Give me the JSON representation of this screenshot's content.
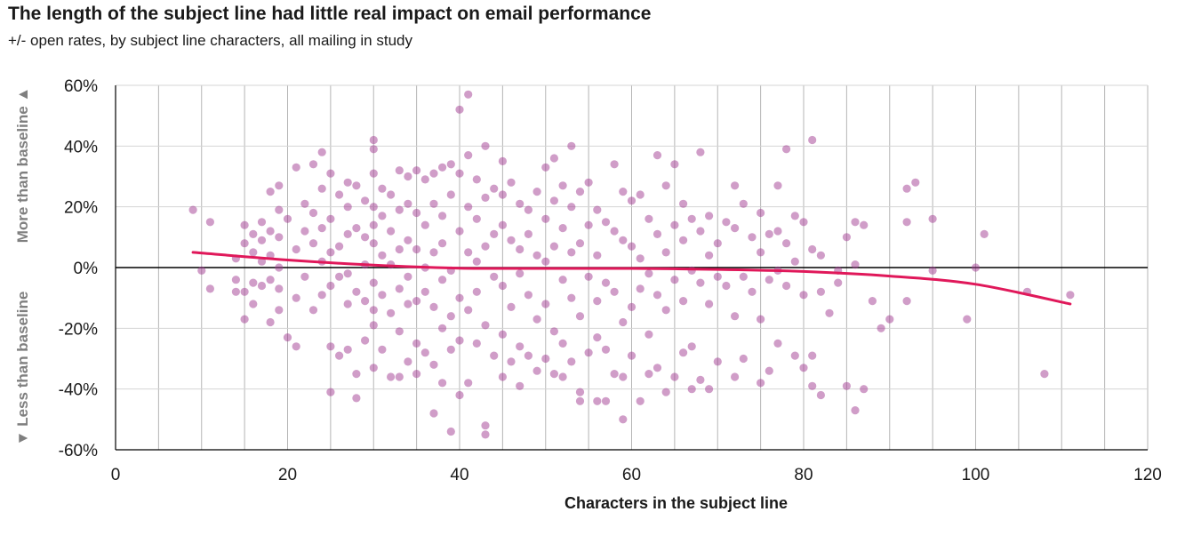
{
  "chart_data": {
    "type": "scatter",
    "title": "The length of the subject line had little real impact on email performance",
    "subtitle": "+/- open rates, by subject line characters, all mailing in study",
    "xlabel": "Characters in the subject line",
    "ylabel_upper": "More than baseline ▲",
    "ylabel_lower": "▼ Less than baseline",
    "xlim": [
      0,
      120
    ],
    "ylim": [
      -60,
      60
    ],
    "x_ticks": [
      0,
      20,
      40,
      60,
      80,
      100,
      120
    ],
    "x_tick_labels": [
      "0",
      "20",
      "40",
      "60",
      "80",
      "100",
      "120"
    ],
    "y_ticks": [
      60,
      40,
      20,
      0,
      -20,
      -40,
      -60
    ],
    "y_tick_labels": [
      "60%",
      "40%",
      "20%",
      "0%",
      "-20%",
      "-40%",
      "-60%"
    ],
    "x_gridline_step": 5,
    "y_gridline_step": 20,
    "grid": true,
    "legend": "none",
    "colors": {
      "points": "#a23c92",
      "trend": "#e0185a",
      "zero_line": "#000000",
      "grid": "#bdbdbd"
    },
    "scatter_series": {
      "name": "",
      "points": [
        [
          9,
          19
        ],
        [
          10,
          -1
        ],
        [
          11,
          15
        ],
        [
          11,
          -7
        ],
        [
          14,
          3
        ],
        [
          14,
          -4
        ],
        [
          14,
          -8
        ],
        [
          15,
          14
        ],
        [
          15,
          8
        ],
        [
          15,
          -17
        ],
        [
          15,
          -8
        ],
        [
          16,
          11
        ],
        [
          16,
          5
        ],
        [
          16,
          -5
        ],
        [
          16,
          -12
        ],
        [
          17,
          15
        ],
        [
          17,
          9
        ],
        [
          17,
          2
        ],
        [
          17,
          -6
        ],
        [
          18,
          25
        ],
        [
          18,
          12
        ],
        [
          18,
          4
        ],
        [
          18,
          -4
        ],
        [
          18,
          -18
        ],
        [
          19,
          27
        ],
        [
          19,
          19
        ],
        [
          19,
          10
        ],
        [
          19,
          0
        ],
        [
          19,
          -7
        ],
        [
          19,
          -14
        ],
        [
          20,
          -23
        ],
        [
          20,
          16
        ],
        [
          21,
          33
        ],
        [
          21,
          6
        ],
        [
          21,
          -10
        ],
        [
          21,
          -26
        ],
        [
          22,
          21
        ],
        [
          22,
          12
        ],
        [
          22,
          -3
        ],
        [
          23,
          34
        ],
        [
          23,
          18
        ],
        [
          23,
          8
        ],
        [
          23,
          -14
        ],
        [
          24,
          38
        ],
        [
          24,
          26
        ],
        [
          24,
          13
        ],
        [
          24,
          2
        ],
        [
          24,
          -9
        ],
        [
          25,
          31
        ],
        [
          25,
          16
        ],
        [
          25,
          5
        ],
        [
          25,
          -6
        ],
        [
          25,
          -41
        ],
        [
          25,
          -26
        ],
        [
          26,
          24
        ],
        [
          26,
          7
        ],
        [
          26,
          -3
        ],
        [
          26,
          -29
        ],
        [
          27,
          28
        ],
        [
          27,
          20
        ],
        [
          27,
          11
        ],
        [
          27,
          -2
        ],
        [
          27,
          -12
        ],
        [
          27,
          -27
        ],
        [
          28,
          27
        ],
        [
          28,
          13
        ],
        [
          28,
          -8
        ],
        [
          28,
          -35
        ],
        [
          28,
          -43
        ],
        [
          29,
          22
        ],
        [
          29,
          10
        ],
        [
          29,
          1
        ],
        [
          29,
          -11
        ],
        [
          29,
          -24
        ],
        [
          30,
          42
        ],
        [
          30,
          39
        ],
        [
          30,
          31
        ],
        [
          30,
          20
        ],
        [
          30,
          14
        ],
        [
          30,
          8
        ],
        [
          30,
          -5
        ],
        [
          30,
          -14
        ],
        [
          30,
          -19
        ],
        [
          30,
          -33
        ],
        [
          31,
          26
        ],
        [
          31,
          17
        ],
        [
          31,
          4
        ],
        [
          31,
          -9
        ],
        [
          31,
          -27
        ],
        [
          32,
          24
        ],
        [
          32,
          12
        ],
        [
          32,
          1
        ],
        [
          32,
          -15
        ],
        [
          32,
          -36
        ],
        [
          33,
          32
        ],
        [
          33,
          19
        ],
        [
          33,
          6
        ],
        [
          33,
          -7
        ],
        [
          33,
          -21
        ],
        [
          33,
          -36
        ],
        [
          34,
          30
        ],
        [
          34,
          21
        ],
        [
          34,
          9
        ],
        [
          34,
          -3
        ],
        [
          34,
          -12
        ],
        [
          34,
          -31
        ],
        [
          35,
          32
        ],
        [
          35,
          18
        ],
        [
          35,
          6
        ],
        [
          35,
          -11
        ],
        [
          35,
          -25
        ],
        [
          35,
          -35
        ],
        [
          36,
          29
        ],
        [
          36,
          14
        ],
        [
          36,
          0
        ],
        [
          36,
          -8
        ],
        [
          36,
          -28
        ],
        [
          37,
          31
        ],
        [
          37,
          21
        ],
        [
          37,
          5
        ],
        [
          37,
          -13
        ],
        [
          37,
          -32
        ],
        [
          37,
          -48
        ],
        [
          38,
          33
        ],
        [
          38,
          17
        ],
        [
          38,
          8
        ],
        [
          38,
          -4
        ],
        [
          38,
          -20
        ],
        [
          38,
          -38
        ],
        [
          39,
          34
        ],
        [
          39,
          24
        ],
        [
          39,
          -1
        ],
        [
          39,
          -16
        ],
        [
          39,
          -27
        ],
        [
          39,
          -54
        ],
        [
          40,
          52
        ],
        [
          40,
          31
        ],
        [
          40,
          12
        ],
        [
          40,
          -10
        ],
        [
          40,
          -24
        ],
        [
          40,
          -42
        ],
        [
          41,
          57
        ],
        [
          41,
          37
        ],
        [
          41,
          20
        ],
        [
          41,
          5
        ],
        [
          41,
          -14
        ],
        [
          41,
          -38
        ],
        [
          42,
          29
        ],
        [
          42,
          16
        ],
        [
          42,
          2
        ],
        [
          42,
          -8
        ],
        [
          42,
          -25
        ],
        [
          43,
          40
        ],
        [
          43,
          23
        ],
        [
          43,
          7
        ],
        [
          43,
          -19
        ],
        [
          43,
          -52
        ],
        [
          43,
          -55
        ],
        [
          44,
          26
        ],
        [
          44,
          11
        ],
        [
          44,
          -3
        ],
        [
          44,
          -29
        ],
        [
          45,
          35
        ],
        [
          45,
          24
        ],
        [
          45,
          14
        ],
        [
          45,
          -6
        ],
        [
          45,
          -22
        ],
        [
          45,
          -36
        ],
        [
          46,
          28
        ],
        [
          46,
          9
        ],
        [
          46,
          -13
        ],
        [
          46,
          -31
        ],
        [
          47,
          21
        ],
        [
          47,
          6
        ],
        [
          47,
          -2
        ],
        [
          47,
          -26
        ],
        [
          47,
          -39
        ],
        [
          48,
          19
        ],
        [
          48,
          11
        ],
        [
          48,
          -9
        ],
        [
          48,
          -29
        ],
        [
          49,
          25
        ],
        [
          49,
          4
        ],
        [
          49,
          -17
        ],
        [
          49,
          -34
        ],
        [
          50,
          33
        ],
        [
          50,
          16
        ],
        [
          50,
          2
        ],
        [
          50,
          -12
        ],
        [
          50,
          -30
        ],
        [
          51,
          36
        ],
        [
          51,
          22
        ],
        [
          51,
          7
        ],
        [
          51,
          -21
        ],
        [
          51,
          -35
        ],
        [
          52,
          27
        ],
        [
          52,
          13
        ],
        [
          52,
          -4
        ],
        [
          52,
          -25
        ],
        [
          52,
          -36
        ],
        [
          53,
          40
        ],
        [
          53,
          20
        ],
        [
          53,
          5
        ],
        [
          53,
          -10
        ],
        [
          53,
          -31
        ],
        [
          54,
          25
        ],
        [
          54,
          8
        ],
        [
          54,
          -16
        ],
        [
          54,
          -41
        ],
        [
          54,
          -44
        ],
        [
          55,
          28
        ],
        [
          55,
          14
        ],
        [
          55,
          -3
        ],
        [
          55,
          -28
        ],
        [
          56,
          19
        ],
        [
          56,
          4
        ],
        [
          56,
          -11
        ],
        [
          56,
          -23
        ],
        [
          56,
          -44
        ],
        [
          57,
          15
        ],
        [
          57,
          -5
        ],
        [
          57,
          -27
        ],
        [
          57,
          -44
        ],
        [
          58,
          34
        ],
        [
          58,
          12
        ],
        [
          58,
          -8
        ],
        [
          58,
          -35
        ],
        [
          59,
          25
        ],
        [
          59,
          9
        ],
        [
          59,
          -18
        ],
        [
          59,
          -36
        ],
        [
          59,
          -50
        ],
        [
          60,
          22
        ],
        [
          60,
          7
        ],
        [
          60,
          -13
        ],
        [
          60,
          -29
        ],
        [
          61,
          24
        ],
        [
          61,
          3
        ],
        [
          61,
          -7
        ],
        [
          61,
          -44
        ],
        [
          62,
          16
        ],
        [
          62,
          -2
        ],
        [
          62,
          -22
        ],
        [
          62,
          -35
        ],
        [
          63,
          37
        ],
        [
          63,
          11
        ],
        [
          63,
          -9
        ],
        [
          63,
          -33
        ],
        [
          64,
          27
        ],
        [
          64,
          5
        ],
        [
          64,
          -14
        ],
        [
          64,
          -41
        ],
        [
          65,
          34
        ],
        [
          65,
          14
        ],
        [
          65,
          -4
        ],
        [
          65,
          -36
        ],
        [
          66,
          21
        ],
        [
          66,
          9
        ],
        [
          66,
          -11
        ],
        [
          66,
          -28
        ],
        [
          67,
          16
        ],
        [
          67,
          -1
        ],
        [
          67,
          -26
        ],
        [
          67,
          -40
        ],
        [
          68,
          38
        ],
        [
          68,
          12
        ],
        [
          68,
          -5
        ],
        [
          68,
          -37
        ],
        [
          69,
          17
        ],
        [
          69,
          4
        ],
        [
          69,
          -12
        ],
        [
          69,
          -40
        ],
        [
          70,
          8
        ],
        [
          70,
          -3
        ],
        [
          70,
          -31
        ],
        [
          71,
          15
        ],
        [
          71,
          -6
        ],
        [
          72,
          27
        ],
        [
          72,
          13
        ],
        [
          72,
          -16
        ],
        [
          72,
          -36
        ],
        [
          73,
          21
        ],
        [
          73,
          -3
        ],
        [
          73,
          -30
        ],
        [
          74,
          10
        ],
        [
          74,
          -8
        ],
        [
          75,
          18
        ],
        [
          75,
          5
        ],
        [
          75,
          -17
        ],
        [
          75,
          -38
        ],
        [
          76,
          11
        ],
        [
          76,
          -4
        ],
        [
          76,
          -34
        ],
        [
          77,
          27
        ],
        [
          77,
          12
        ],
        [
          77,
          -1
        ],
        [
          77,
          -25
        ],
        [
          78,
          39
        ],
        [
          78,
          8
        ],
        [
          78,
          -6
        ],
        [
          79,
          17
        ],
        [
          79,
          2
        ],
        [
          79,
          -29
        ],
        [
          80,
          15
        ],
        [
          80,
          -9
        ],
        [
          80,
          -33
        ],
        [
          81,
          42
        ],
        [
          81,
          6
        ],
        [
          81,
          -29
        ],
        [
          81,
          -39
        ],
        [
          82,
          4
        ],
        [
          82,
          -8
        ],
        [
          82,
          -42
        ],
        [
          83,
          -15
        ],
        [
          84,
          -1
        ],
        [
          84,
          -5
        ],
        [
          85,
          10
        ],
        [
          85,
          -39
        ],
        [
          86,
          15
        ],
        [
          86,
          1
        ],
        [
          86,
          -47
        ],
        [
          87,
          14
        ],
        [
          87,
          -40
        ],
        [
          88,
          -11
        ],
        [
          89,
          -20
        ],
        [
          90,
          -17
        ],
        [
          92,
          26
        ],
        [
          92,
          15
        ],
        [
          92,
          -11
        ],
        [
          93,
          28
        ],
        [
          95,
          16
        ],
        [
          95,
          -1
        ],
        [
          99,
          -17
        ],
        [
          100,
          0
        ],
        [
          101,
          11
        ],
        [
          106,
          -8
        ],
        [
          108,
          -35
        ],
        [
          111,
          -9
        ]
      ]
    },
    "trend_line": {
      "name": "",
      "x": [
        9,
        20,
        30,
        40,
        50,
        60,
        70,
        80,
        90,
        100,
        111
      ],
      "y": [
        5,
        2.5,
        0.8,
        -0.2,
        -0.3,
        -0.3,
        -0.6,
        -1.3,
        -2.8,
        -5.5,
        -12
      ]
    }
  }
}
